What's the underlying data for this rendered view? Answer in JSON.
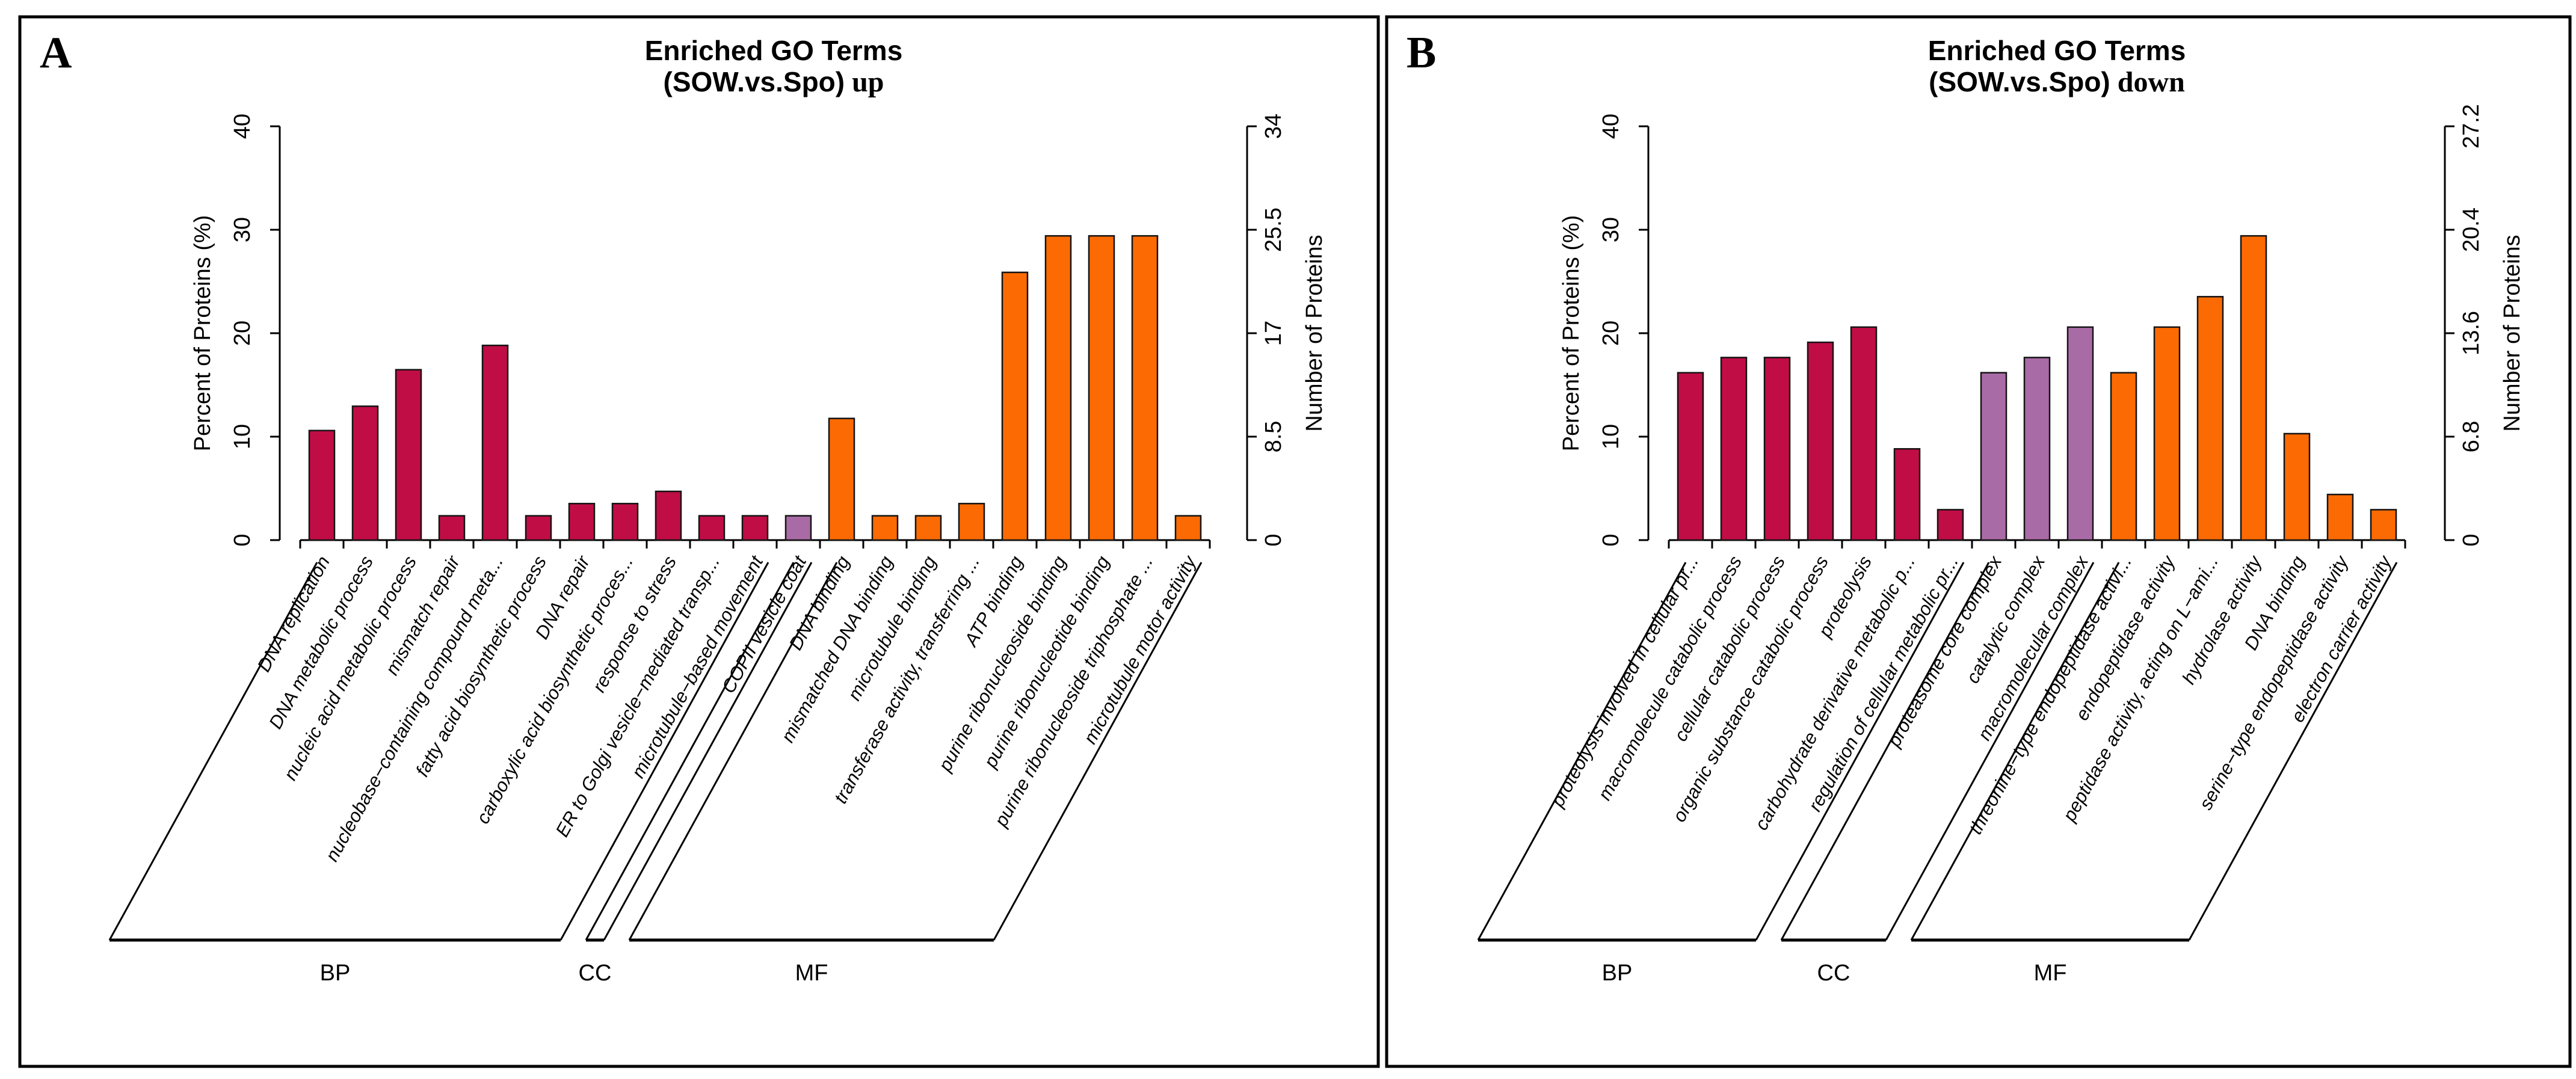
{
  "page": {
    "background": "#ffffff"
  },
  "chart_data": [
    {
      "type": "bar",
      "panel_letter": "A",
      "title": "Enriched GO Terms",
      "subtitle": "(SOW.vs.Spo)",
      "subtitle_suffix": "up",
      "ylabel_left": "Percent of Proteins (%)",
      "ylabel_right": "Number of Proteins",
      "ylim": [
        0,
        40
      ],
      "left_ticks": [
        "0",
        "10",
        "20",
        "30",
        "40"
      ],
      "right_ticks": [
        "0",
        "8.5",
        "17",
        "25.5",
        "34"
      ],
      "right_axis_max": 34,
      "grid": false,
      "legend_position": "none",
      "group_order": [
        "BP",
        "CC",
        "MF"
      ],
      "group_labels": {
        "BP": "BP",
        "CC": "CC",
        "MF": "MF"
      },
      "colors": {
        "BP": "#C00D45",
        "CC": "#A96BA6",
        "MF": "#FB6A03"
      },
      "categories": [
        "DNA replication",
        "DNA metabolic process",
        "nucleic acid metabolic process",
        "mismatch repair",
        "nucleobase−containing compound meta...",
        "fatty acid biosynthetic process",
        "DNA repair",
        "carboxylic acid biosynthetic proces...",
        "response to stress",
        "ER to Golgi vesicle−mediated transp...",
        "microtubule−based movement",
        "COPII vesicle coat",
        "DNA binding",
        "mismatched DNA binding",
        "microtubule binding",
        "transferase activity, transferring ...",
        "ATP binding",
        "purine ribonucleoside binding",
        "purine ribonucleotide binding",
        "purine ribonucleoside triphosphate ...",
        "microtubule motor activity"
      ],
      "groups": [
        "BP",
        "BP",
        "BP",
        "BP",
        "BP",
        "BP",
        "BP",
        "BP",
        "BP",
        "BP",
        "BP",
        "CC",
        "MF",
        "MF",
        "MF",
        "MF",
        "MF",
        "MF",
        "MF",
        "MF",
        "MF"
      ],
      "values_percent": [
        10.59,
        12.94,
        16.47,
        2.35,
        18.82,
        2.35,
        3.53,
        3.53,
        4.71,
        2.35,
        2.35,
        2.35,
        11.76,
        2.35,
        2.35,
        3.53,
        25.88,
        29.41,
        29.41,
        29.41,
        2.35
      ],
      "values_count": [
        9,
        11,
        14,
        2,
        16,
        2,
        3,
        3,
        4,
        2,
        2,
        2,
        10,
        2,
        2,
        3,
        22,
        25,
        25,
        25,
        2
      ]
    },
    {
      "type": "bar",
      "panel_letter": "B",
      "title": "Enriched GO Terms",
      "subtitle": "(SOW.vs.Spo)",
      "subtitle_suffix": "down",
      "ylabel_left": "Percent of Proteins (%)",
      "ylabel_right": "Number of Proteins",
      "ylim": [
        0,
        40
      ],
      "left_ticks": [
        "0",
        "10",
        "20",
        "30",
        "40"
      ],
      "right_ticks": [
        "0",
        "6.8",
        "13.6",
        "20.4",
        "27.2"
      ],
      "right_axis_max": 27.2,
      "grid": false,
      "legend_position": "none",
      "group_order": [
        "BP",
        "CC",
        "MF"
      ],
      "group_labels": {
        "BP": "BP",
        "CC": "CC",
        "MF": "MF"
      },
      "colors": {
        "BP": "#C00D45",
        "CC": "#A96BA6",
        "MF": "#FB6A03"
      },
      "categories": [
        "proteolysis involved in cellular pr...",
        "macromolecule catabolic process",
        "cellular catabolic process",
        "organic substance catabolic process",
        "proteolysis",
        "carbohydrate derivative metabolic p...",
        "regulation of cellular metabolic pr...",
        "proteasome core complex",
        "catalytic complex",
        "macromolecular complex",
        "threonine−type endopeptidase activi...",
        "endopeptidase activity",
        "peptidase activity, acting on L−ami...",
        "hydrolase activity",
        "DNA binding",
        "serine−type endopeptidase activity",
        "electron carrier activity"
      ],
      "groups": [
        "BP",
        "BP",
        "BP",
        "BP",
        "BP",
        "BP",
        "BP",
        "CC",
        "CC",
        "CC",
        "MF",
        "MF",
        "MF",
        "MF",
        "MF",
        "MF",
        "MF"
      ],
      "values_percent": [
        16.18,
        17.65,
        17.65,
        19.12,
        20.59,
        8.82,
        2.94,
        16.18,
        17.65,
        20.59,
        16.18,
        20.59,
        23.53,
        29.41,
        10.29,
        4.41,
        2.94
      ],
      "values_count": [
        11,
        12,
        12,
        13,
        14,
        6,
        2,
        11,
        12,
        14,
        11,
        14,
        16,
        20,
        7,
        3,
        2
      ]
    }
  ]
}
